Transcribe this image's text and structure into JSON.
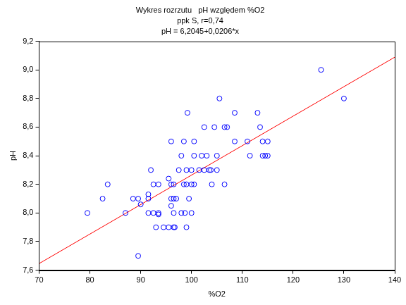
{
  "chart_data": {
    "type": "scatter",
    "title": [
      "Wykres rozrzutu   pH względem %O2",
      "ppk S, r=0,74",
      "pH = 6,2045+0,0206*x"
    ],
    "x_label": "%O2",
    "y_label": "pH",
    "xlim": [
      70,
      140
    ],
    "xticks": [
      70,
      80,
      90,
      100,
      110,
      120,
      130,
      140
    ],
    "ylim": [
      7.6,
      9.2
    ],
    "yticks": [
      {
        "value": 7.6,
        "label": "7,6"
      },
      {
        "value": 7.8,
        "label": "7,8"
      },
      {
        "value": 8.0,
        "label": "8,0"
      },
      {
        "value": 8.2,
        "label": "8,2"
      },
      {
        "value": 8.4,
        "label": "8,4"
      },
      {
        "value": 8.6,
        "label": "8,6"
      },
      {
        "value": 8.8,
        "label": "8,8"
      },
      {
        "value": 9.0,
        "label": "9,0"
      },
      {
        "value": 9.2,
        "label": "9,2"
      }
    ],
    "grid": false,
    "series": [
      {
        "type": "scatter",
        "color": "#0000ff",
        "marker": "circle_open",
        "x": [
          79.5,
          82.5,
          83.5,
          87,
          88.5,
          89.5,
          89.5,
          90,
          91.5,
          91.5,
          91.5,
          92,
          92.5,
          92.5,
          93,
          93.5,
          93.5,
          93.5,
          94.5,
          95.5,
          95.5,
          96,
          96,
          96,
          96,
          96.5,
          96.5,
          96.5,
          96.5,
          96.7,
          97,
          97.5,
          98,
          98,
          98.5,
          98.5,
          98.7,
          99,
          99,
          99,
          99.2,
          99.5,
          100,
          100,
          100,
          100.5,
          100.5,
          100.5,
          101.5,
          102,
          102.5,
          102.5,
          103,
          103.5,
          103.8,
          104,
          104.5,
          105,
          105,
          105.5,
          106.5,
          106.5,
          107,
          108.5,
          108.5,
          111,
          111.5,
          113,
          113.5,
          114,
          114,
          114.5,
          115,
          115,
          125.5,
          130
        ],
        "values": [
          8.0,
          8.1,
          8.2,
          8.0,
          8.1,
          8.1,
          7.7,
          8.06,
          8.1,
          8.13,
          8.0,
          8.3,
          8.0,
          8.2,
          7.9,
          8.0,
          8.2,
          7.99,
          7.9,
          7.9,
          8.24,
          8.5,
          8.1,
          8.2,
          8.05,
          8.2,
          8.0,
          7.9,
          8.1,
          7.9,
          8.1,
          8.3,
          8.4,
          8.0,
          8.2,
          8.5,
          8.0,
          8.3,
          8.2,
          7.9,
          8.7,
          8.1,
          8.3,
          8.0,
          8.2,
          8.2,
          8.4,
          8.5,
          8.3,
          8.4,
          8.3,
          8.6,
          8.4,
          8.3,
          8.3,
          8.2,
          8.6,
          8.4,
          8.3,
          8.8,
          8.6,
          8.2,
          8.6,
          8.5,
          8.7,
          8.5,
          8.4,
          8.7,
          8.6,
          8.5,
          8.4,
          8.4,
          8.5,
          8.4,
          9.0,
          8.8
        ]
      },
      {
        "type": "line",
        "color": "#ff0000",
        "line_style": "solid",
        "x": [
          70,
          140
        ],
        "values": [
          7.6465,
          9.0885
        ]
      }
    ]
  }
}
